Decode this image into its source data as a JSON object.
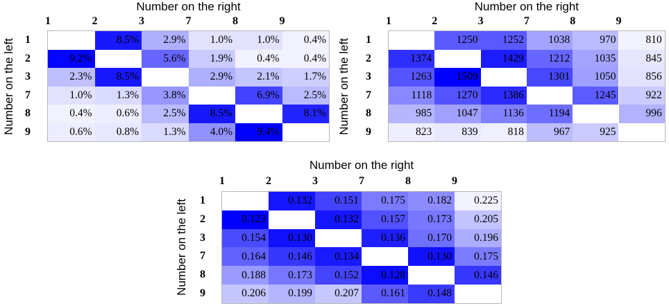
{
  "chart_data": [
    {
      "type": "heatmap",
      "title": "Number on the right",
      "ylabel": "Number on the left",
      "column_labels": [
        "1",
        "2",
        "3",
        "7",
        "8",
        "9"
      ],
      "row_labels": [
        "1",
        "2",
        "3",
        "7",
        "8",
        "9"
      ],
      "value_format": "percent",
      "colormap": {
        "low": "#ffffff",
        "high": "#0000ff"
      },
      "values": [
        [
          null,
          8.5,
          2.9,
          1.0,
          1.0,
          0.4
        ],
        [
          9.2,
          null,
          5.6,
          1.9,
          0.4,
          0.4
        ],
        [
          2.3,
          8.5,
          null,
          2.9,
          2.1,
          1.7
        ],
        [
          1.0,
          1.3,
          3.8,
          null,
          6.9,
          2.5
        ],
        [
          0.4,
          0.6,
          2.5,
          8.5,
          null,
          8.1
        ],
        [
          0.6,
          0.8,
          1.3,
          4.0,
          9.4,
          null
        ]
      ],
      "labels": [
        [
          "",
          "8.5%",
          "2.9%",
          "1.0%",
          "1.0%",
          "0.4%"
        ],
        [
          "9.2%",
          "",
          "5.6%",
          "1.9%",
          "0.4%",
          "0.4%"
        ],
        [
          "2.3%",
          "8.5%",
          "",
          "2.9%",
          "2.1%",
          "1.7%"
        ],
        [
          "1.0%",
          "1.3%",
          "3.8%",
          "",
          "6.9%",
          "2.5%"
        ],
        [
          "0.4%",
          "0.6%",
          "2.5%",
          "8.5%",
          "",
          "8.1%"
        ],
        [
          "0.6%",
          "0.8%",
          "1.3%",
          "4.0%",
          "9.4%",
          ""
        ]
      ]
    },
    {
      "type": "heatmap",
      "title": "Number on the right",
      "ylabel": "Number on the left",
      "column_labels": [
        "1",
        "2",
        "3",
        "7",
        "8",
        "9"
      ],
      "row_labels": [
        "1",
        "2",
        "3",
        "7",
        "8",
        "9"
      ],
      "value_format": "integer",
      "colormap": {
        "low": "#ffffff",
        "high": "#0000ff"
      },
      "values": [
        [
          null,
          1250,
          1252,
          1038,
          970,
          810
        ],
        [
          1374,
          null,
          1429,
          1212,
          1035,
          845
        ],
        [
          1263,
          1509,
          null,
          1301,
          1050,
          856
        ],
        [
          1118,
          1270,
          1386,
          null,
          1245,
          922
        ],
        [
          985,
          1047,
          1136,
          1194,
          null,
          996
        ],
        [
          823,
          839,
          818,
          967,
          925,
          null
        ]
      ],
      "labels": [
        [
          "",
          "1250",
          "1252",
          "1038",
          "970",
          "810"
        ],
        [
          "1374",
          "",
          "1429",
          "1212",
          "1035",
          "845"
        ],
        [
          "1263",
          "1509",
          "",
          "1301",
          "1050",
          "856"
        ],
        [
          "1118",
          "1270",
          "1386",
          "",
          "1245",
          "922"
        ],
        [
          "985",
          "1047",
          "1136",
          "1194",
          "",
          "996"
        ],
        [
          "823",
          "839",
          "818",
          "967",
          "925",
          ""
        ]
      ]
    },
    {
      "type": "heatmap",
      "title": "Number on the right",
      "ylabel": "Number on the left",
      "column_labels": [
        "1",
        "2",
        "3",
        "7",
        "8",
        "9"
      ],
      "row_labels": [
        "1",
        "2",
        "3",
        "7",
        "8",
        "9"
      ],
      "value_format": "decimal",
      "colormap": {
        "low": "#ffffff",
        "high": "#0000ff",
        "reversed": true
      },
      "values": [
        [
          null,
          0.132,
          0.151,
          0.175,
          0.182,
          0.225
        ],
        [
          0.123,
          null,
          0.132,
          0.157,
          0.173,
          0.205
        ],
        [
          0.154,
          0.13,
          null,
          0.136,
          0.17,
          0.196
        ],
        [
          0.164,
          0.146,
          0.134,
          null,
          0.13,
          0.175
        ],
        [
          0.188,
          0.173,
          0.152,
          0.128,
          null,
          0.146
        ],
        [
          0.206,
          0.199,
          0.207,
          0.161,
          0.148,
          null
        ]
      ],
      "labels": [
        [
          "",
          "0.132",
          "0.151",
          "0.175",
          "0.182",
          "0.225"
        ],
        [
          "0.123",
          "",
          "0.132",
          "0.157",
          "0.173",
          "0.205"
        ],
        [
          "0.154",
          "0.130",
          "",
          "0.136",
          "0.170",
          "0.196"
        ],
        [
          "0.164",
          "0.146",
          "0.134",
          "",
          "0.130",
          "0.175"
        ],
        [
          "0.188",
          "0.173",
          "0.152",
          "0.128",
          "",
          "0.146"
        ],
        [
          "0.206",
          "0.199",
          "0.207",
          "0.161",
          "0.148",
          ""
        ]
      ]
    }
  ]
}
